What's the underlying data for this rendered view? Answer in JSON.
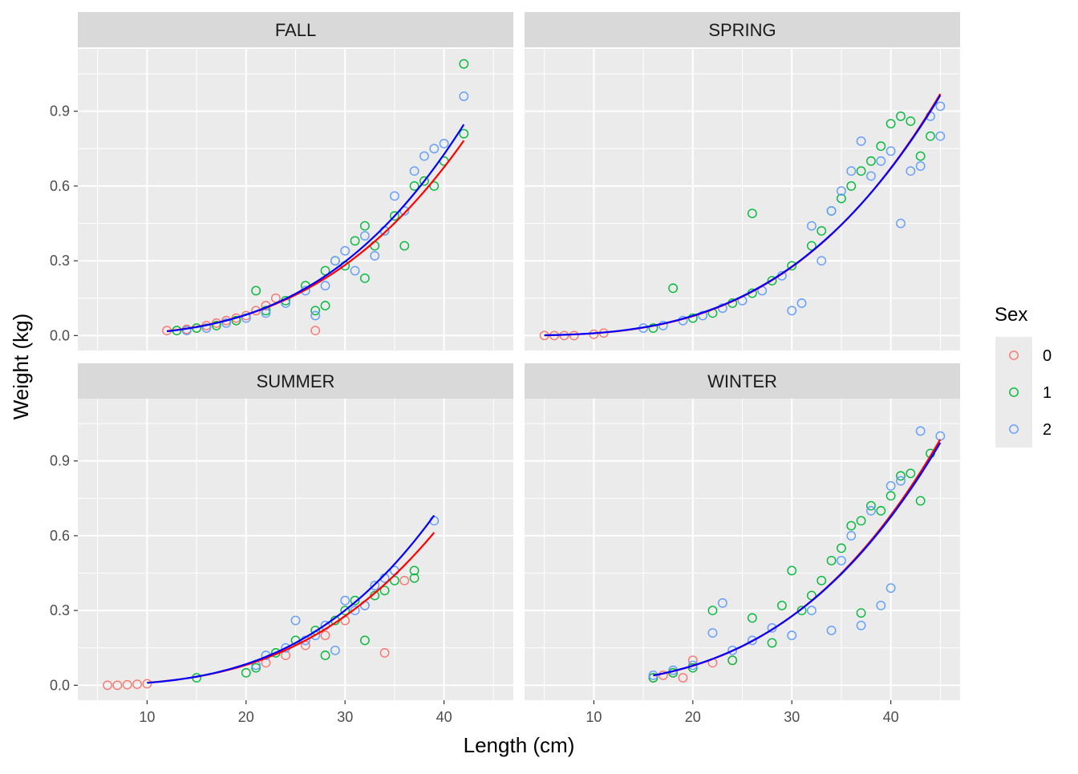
{
  "chart_data": {
    "type": "scatter",
    "xlabel": "Length (cm)",
    "ylabel": "Weight (kg)",
    "xlim": [
      3,
      47
    ],
    "ylim": [
      -0.06,
      1.15
    ],
    "x_ticks": [
      10,
      20,
      30,
      40
    ],
    "y_ticks": [
      0.0,
      0.3,
      0.6,
      0.9
    ],
    "y_tick_labels": [
      "0.0",
      "0.3",
      "0.6",
      "0.9"
    ],
    "grid": true,
    "legend": {
      "title": "Sex",
      "placement": "right",
      "entries": [
        {
          "label": "0",
          "color": "#F8766D"
        },
        {
          "label": "1",
          "color": "#00BA38"
        },
        {
          "label": "2",
          "color": "#619CFF"
        }
      ]
    },
    "fit_line_colors": {
      "0": "#ff0000",
      "2": "#0000ff"
    },
    "panels": [
      {
        "title": "FALL",
        "series": [
          {
            "name": "0",
            "points": [
              [
                12,
                0.02
              ],
              [
                13,
                0.02
              ],
              [
                14,
                0.025
              ],
              [
                15,
                0.03
              ],
              [
                16,
                0.04
              ],
              [
                17,
                0.05
              ],
              [
                18,
                0.06
              ],
              [
                19,
                0.07
              ],
              [
                20,
                0.08
              ],
              [
                21,
                0.1
              ],
              [
                22,
                0.12
              ],
              [
                23,
                0.15
              ],
              [
                27,
                0.02
              ]
            ]
          },
          {
            "name": "1",
            "points": [
              [
                13,
                0.02
              ],
              [
                15,
                0.03
              ],
              [
                17,
                0.04
              ],
              [
                19,
                0.06
              ],
              [
                21,
                0.18
              ],
              [
                22,
                0.1
              ],
              [
                24,
                0.14
              ],
              [
                26,
                0.2
              ],
              [
                27,
                0.1
              ],
              [
                28,
                0.12
              ],
              [
                28,
                0.26
              ],
              [
                29,
                0.3
              ],
              [
                30,
                0.28
              ],
              [
                31,
                0.38
              ],
              [
                32,
                0.23
              ],
              [
                32,
                0.44
              ],
              [
                33,
                0.36
              ],
              [
                34,
                0.42
              ],
              [
                35,
                0.48
              ],
              [
                36,
                0.36
              ],
              [
                37,
                0.6
              ],
              [
                38,
                0.62
              ],
              [
                39,
                0.6
              ],
              [
                40,
                0.7
              ],
              [
                42,
                0.81
              ],
              [
                42,
                1.09
              ]
            ]
          },
          {
            "name": "2",
            "points": [
              [
                14,
                0.02
              ],
              [
                16,
                0.03
              ],
              [
                18,
                0.05
              ],
              [
                20,
                0.07
              ],
              [
                22,
                0.09
              ],
              [
                24,
                0.13
              ],
              [
                26,
                0.18
              ],
              [
                27,
                0.08
              ],
              [
                28,
                0.2
              ],
              [
                29,
                0.3
              ],
              [
                30,
                0.34
              ],
              [
                31,
                0.26
              ],
              [
                32,
                0.4
              ],
              [
                33,
                0.32
              ],
              [
                34,
                0.42
              ],
              [
                35,
                0.56
              ],
              [
                36,
                0.5
              ],
              [
                37,
                0.66
              ],
              [
                38,
                0.72
              ],
              [
                39,
                0.75
              ],
              [
                40,
                0.77
              ],
              [
                42,
                0.96
              ]
            ]
          }
        ],
        "fits": [
          {
            "name": "0",
            "xrange": [
              12,
              42
            ],
            "a": 9.8e-06,
            "b": 3.02
          },
          {
            "name": "2",
            "xrange": [
              12,
              42
            ],
            "a": 7.3e-06,
            "b": 3.12
          }
        ]
      },
      {
        "title": "SPRING",
        "series": [
          {
            "name": "0",
            "points": [
              [
                5,
                0.0
              ],
              [
                6,
                0.0
              ],
              [
                7,
                0.0
              ],
              [
                8,
                0.0
              ],
              [
                10,
                0.005
              ],
              [
                11,
                0.01
              ]
            ]
          },
          {
            "name": "1",
            "points": [
              [
                16,
                0.03
              ],
              [
                18,
                0.19
              ],
              [
                20,
                0.07
              ],
              [
                22,
                0.09
              ],
              [
                24,
                0.13
              ],
              [
                26,
                0.49
              ],
              [
                26,
                0.17
              ],
              [
                28,
                0.22
              ],
              [
                30,
                0.28
              ],
              [
                32,
                0.36
              ],
              [
                33,
                0.42
              ],
              [
                34,
                0.5
              ],
              [
                35,
                0.55
              ],
              [
                36,
                0.6
              ],
              [
                37,
                0.66
              ],
              [
                38,
                0.7
              ],
              [
                39,
                0.76
              ],
              [
                40,
                0.85
              ],
              [
                41,
                0.88
              ],
              [
                42,
                0.86
              ],
              [
                43,
                0.72
              ],
              [
                44,
                0.8
              ]
            ]
          },
          {
            "name": "2",
            "points": [
              [
                15,
                0.03
              ],
              [
                17,
                0.04
              ],
              [
                19,
                0.06
              ],
              [
                21,
                0.08
              ],
              [
                23,
                0.11
              ],
              [
                25,
                0.14
              ],
              [
                27,
                0.18
              ],
              [
                29,
                0.24
              ],
              [
                30,
                0.1
              ],
              [
                31,
                0.13
              ],
              [
                32,
                0.44
              ],
              [
                33,
                0.3
              ],
              [
                34,
                0.5
              ],
              [
                35,
                0.58
              ],
              [
                36,
                0.66
              ],
              [
                37,
                0.78
              ],
              [
                38,
                0.64
              ],
              [
                39,
                0.7
              ],
              [
                40,
                0.74
              ],
              [
                41,
                0.45
              ],
              [
                42,
                0.66
              ],
              [
                43,
                0.68
              ],
              [
                44,
                0.88
              ],
              [
                45,
                0.8
              ],
              [
                45,
                0.92
              ]
            ]
          }
        ],
        "fits": [
          {
            "name": "0",
            "xrange": [
              5,
              45
            ],
            "a": 7e-06,
            "b": 3.11
          },
          {
            "name": "2",
            "xrange": [
              5,
              45
            ],
            "a": 7.8e-06,
            "b": 3.08
          }
        ]
      },
      {
        "title": "SUMMER",
        "series": [
          {
            "name": "0",
            "points": [
              [
                6,
                0.0
              ],
              [
                7,
                0.0
              ],
              [
                8,
                0.002
              ],
              [
                9,
                0.004
              ],
              [
                10,
                0.006
              ],
              [
                22,
                0.09
              ],
              [
                24,
                0.12
              ],
              [
                26,
                0.16
              ],
              [
                28,
                0.2
              ],
              [
                30,
                0.26
              ],
              [
                32,
                0.32
              ],
              [
                34,
                0.13
              ],
              [
                36,
                0.42
              ]
            ]
          },
          {
            "name": "1",
            "points": [
              [
                15,
                0.03
              ],
              [
                20,
                0.05
              ],
              [
                21,
                0.07
              ],
              [
                23,
                0.13
              ],
              [
                25,
                0.18
              ],
              [
                27,
                0.22
              ],
              [
                28,
                0.12
              ],
              [
                29,
                0.26
              ],
              [
                30,
                0.3
              ],
              [
                31,
                0.34
              ],
              [
                32,
                0.18
              ],
              [
                33,
                0.36
              ],
              [
                34,
                0.38
              ],
              [
                35,
                0.42
              ],
              [
                37,
                0.43
              ],
              [
                37,
                0.46
              ]
            ]
          },
          {
            "name": "2",
            "points": [
              [
                21,
                0.08
              ],
              [
                22,
                0.12
              ],
              [
                24,
                0.15
              ],
              [
                25,
                0.26
              ],
              [
                26,
                0.18
              ],
              [
                27,
                0.2
              ],
              [
                28,
                0.24
              ],
              [
                29,
                0.14
              ],
              [
                30,
                0.34
              ],
              [
                31,
                0.3
              ],
              [
                32,
                0.32
              ],
              [
                33,
                0.4
              ],
              [
                34,
                0.43
              ],
              [
                35,
                0.46
              ],
              [
                39,
                0.66
              ]
            ]
          }
        ],
        "fits": [
          {
            "name": "0",
            "xrange": [
              10,
              39
            ],
            "a": 9.6e-06,
            "b": 3.02
          },
          {
            "name": "2",
            "xrange": [
              10,
              39
            ],
            "a": 7.4e-06,
            "b": 3.12
          }
        ]
      },
      {
        "title": "WINTER",
        "series": [
          {
            "name": "0",
            "points": [
              [
                16,
                0.03
              ],
              [
                17,
                0.04
              ],
              [
                18,
                0.05
              ],
              [
                19,
                0.03
              ],
              [
                20,
                0.1
              ],
              [
                22,
                0.09
              ],
              [
                24,
                0.1
              ]
            ]
          },
          {
            "name": "1",
            "points": [
              [
                16,
                0.03
              ],
              [
                18,
                0.05
              ],
              [
                20,
                0.07
              ],
              [
                22,
                0.3
              ],
              [
                24,
                0.1
              ],
              [
                26,
                0.27
              ],
              [
                28,
                0.17
              ],
              [
                29,
                0.32
              ],
              [
                30,
                0.46
              ],
              [
                31,
                0.3
              ],
              [
                32,
                0.36
              ],
              [
                33,
                0.42
              ],
              [
                34,
                0.5
              ],
              [
                35,
                0.55
              ],
              [
                36,
                0.64
              ],
              [
                37,
                0.66
              ],
              [
                37,
                0.29
              ],
              [
                38,
                0.72
              ],
              [
                39,
                0.7
              ],
              [
                40,
                0.76
              ],
              [
                41,
                0.84
              ],
              [
                42,
                0.85
              ],
              [
                43,
                0.74
              ],
              [
                44,
                0.93
              ]
            ]
          },
          {
            "name": "2",
            "points": [
              [
                16,
                0.04
              ],
              [
                18,
                0.06
              ],
              [
                20,
                0.08
              ],
              [
                22,
                0.21
              ],
              [
                23,
                0.33
              ],
              [
                24,
                0.14
              ],
              [
                26,
                0.18
              ],
              [
                28,
                0.23
              ],
              [
                30,
                0.2
              ],
              [
                32,
                0.3
              ],
              [
                34,
                0.22
              ],
              [
                35,
                0.5
              ],
              [
                36,
                0.6
              ],
              [
                37,
                0.24
              ],
              [
                38,
                0.7
              ],
              [
                39,
                0.32
              ],
              [
                40,
                0.39
              ],
              [
                40,
                0.8
              ],
              [
                41,
                0.82
              ],
              [
                43,
                1.02
              ],
              [
                45,
                1.0
              ]
            ]
          }
        ],
        "fits": [
          {
            "name": "0",
            "xrange": [
              16,
              45
            ],
            "a": 6.6e-06,
            "b": 3.13
          },
          {
            "name": "2",
            "xrange": [
              16,
              45
            ],
            "a": 7.3e-06,
            "b": 3.1
          }
        ]
      }
    ]
  }
}
